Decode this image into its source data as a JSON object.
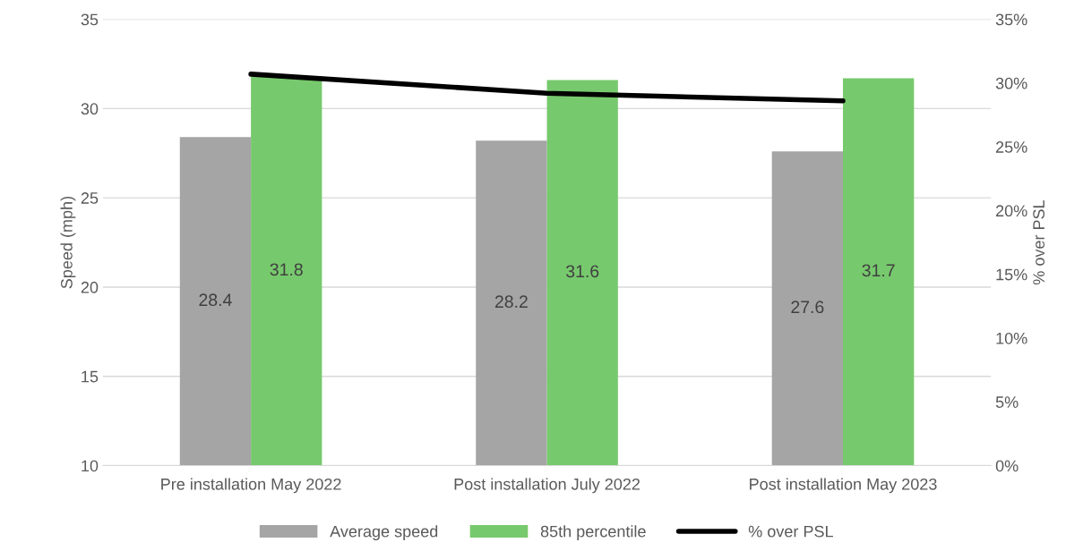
{
  "chart_data": {
    "type": "bar",
    "categories": [
      "Pre installation May 2022",
      "Post installation July 2022",
      "Post installation May 2023"
    ],
    "ylabel": "Speed (mph)",
    "y2label": "% over PSL",
    "ylim": [
      10,
      35
    ],
    "yticks": [
      10,
      15,
      20,
      25,
      30,
      35
    ],
    "y2lim": [
      0,
      35
    ],
    "y2ticks": [
      {
        "value": 0,
        "label": "0%"
      },
      {
        "value": 5,
        "label": "5%"
      },
      {
        "value": 10,
        "label": "10%"
      },
      {
        "value": 15,
        "label": "15%"
      },
      {
        "value": 20,
        "label": "20%"
      },
      {
        "value": 25,
        "label": "25%"
      },
      {
        "value": 30,
        "label": "30%"
      },
      {
        "value": 35,
        "label": "35%"
      }
    ],
    "series": [
      {
        "name": "Average speed",
        "color": "#a5a5a5",
        "values": [
          28.4,
          28.2,
          27.6
        ],
        "data_labels": true
      },
      {
        "name": "85th percentile",
        "color": "#77c96d",
        "values": [
          31.8,
          31.6,
          31.7
        ],
        "data_labels": true
      },
      {
        "name": "% over PSL",
        "type": "line",
        "axis": "y2",
        "color": "#000000",
        "values": [
          30.7,
          29.2,
          28.6
        ],
        "line_style": "solid",
        "marker": "none"
      }
    ],
    "grid": "y",
    "legend": "bottom"
  }
}
